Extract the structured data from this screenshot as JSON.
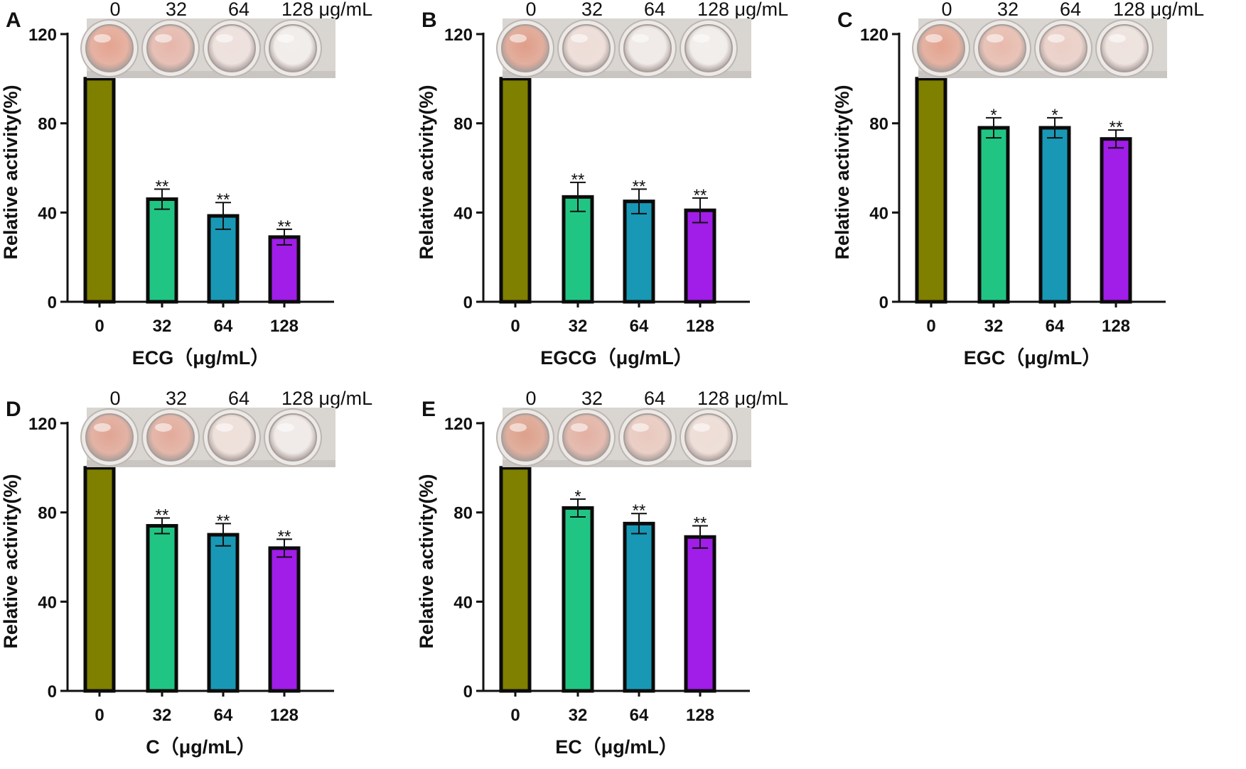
{
  "colors": {
    "bar_0": "#7f7f00",
    "bar_32": "#21c583",
    "bar_64": "#1898b5",
    "bar_128": "#a11de8",
    "edge": "#0b0b0b",
    "well_plate_bg": "#d9d6d2"
  },
  "chart_data": [
    {
      "type": "bar",
      "panel_label": "A",
      "categories": [
        "0",
        "32",
        "64",
        "128"
      ],
      "values": [
        100,
        46,
        38.5,
        29
      ],
      "errors": [
        0,
        4.5,
        6,
        3.5
      ],
      "significance": [
        "",
        "**",
        "**",
        "**"
      ],
      "ylabel": "Relative activity(%)",
      "xlabel": "ECG（μg/mL）",
      "ylim": [
        0,
        120
      ],
      "yticks": [
        "0",
        "40",
        "80",
        "120"
      ],
      "plate_labels": [
        "0",
        "32",
        "64",
        "128 μg/mL"
      ],
      "plate_tints": [
        "#e4a08c",
        "#e6b3a7",
        "#eee0dc",
        "#f2eeec"
      ]
    },
    {
      "type": "bar",
      "panel_label": "B",
      "categories": [
        "0",
        "32",
        "64",
        "128"
      ],
      "values": [
        100,
        47,
        45,
        41
      ],
      "errors": [
        0,
        6.5,
        5.5,
        5.5
      ],
      "significance": [
        "",
        "**",
        "**",
        "**"
      ],
      "ylabel": "Relative activity(%)",
      "xlabel": "EGCG（μg/mL）",
      "ylim": [
        0,
        120
      ],
      "yticks": [
        "0",
        "40",
        "80",
        "120"
      ],
      "plate_labels": [
        "0",
        "32",
        "64",
        "128 μg/mL"
      ],
      "plate_tints": [
        "#df9a85",
        "#eedcd6",
        "#f1ebe8",
        "#f2efed"
      ]
    },
    {
      "type": "bar",
      "panel_label": "C",
      "categories": [
        "0",
        "32",
        "64",
        "128"
      ],
      "values": [
        100,
        78,
        78,
        73
      ],
      "errors": [
        0,
        4.5,
        4.5,
        4
      ],
      "significance": [
        "",
        "*",
        "*",
        "**"
      ],
      "ylabel": "Relative activity(%)",
      "xlabel": "EGC（μg/mL）",
      "ylim": [
        0,
        120
      ],
      "yticks": [
        "0",
        "40",
        "80",
        "120"
      ],
      "plate_labels": [
        "0",
        "32",
        "64",
        "128 μg/mL"
      ],
      "plate_tints": [
        "#e3a08b",
        "#e8b7a9",
        "#ebcdc4",
        "#efe2dd"
      ]
    },
    {
      "type": "bar",
      "panel_label": "D",
      "categories": [
        "0",
        "32",
        "64",
        "128"
      ],
      "values": [
        100,
        74,
        70,
        64
      ],
      "errors": [
        0,
        3.5,
        5,
        4
      ],
      "significance": [
        "",
        "**",
        "**",
        "**"
      ],
      "ylabel": "Relative activity(%)",
      "xlabel": "C（μg/mL）",
      "ylim": [
        0,
        120
      ],
      "yticks": [
        "0",
        "40",
        "80",
        "120"
      ],
      "plate_labels": [
        "0",
        "32",
        "64",
        "128 μg/mL"
      ],
      "plate_tints": [
        "#e0a18f",
        "#e2a796",
        "#efdfd9",
        "#f1ebe8"
      ]
    },
    {
      "type": "bar",
      "panel_label": "E",
      "categories": [
        "0",
        "32",
        "64",
        "128"
      ],
      "values": [
        100,
        82,
        75,
        69
      ],
      "errors": [
        0,
        4,
        4.5,
        5
      ],
      "significance": [
        "",
        "*",
        "**",
        "**"
      ],
      "ylabel": "Relative activity(%)",
      "xlabel": "EC（μg/mL）",
      "ylim": [
        0,
        120
      ],
      "yticks": [
        "0",
        "40",
        "80",
        "120"
      ],
      "plate_labels": [
        "0",
        "32",
        "64",
        "128 μg/mL"
      ],
      "plate_tints": [
        "#dc9c86",
        "#e3ad9f",
        "#e9c7bc",
        "#efdcd5"
      ]
    }
  ]
}
